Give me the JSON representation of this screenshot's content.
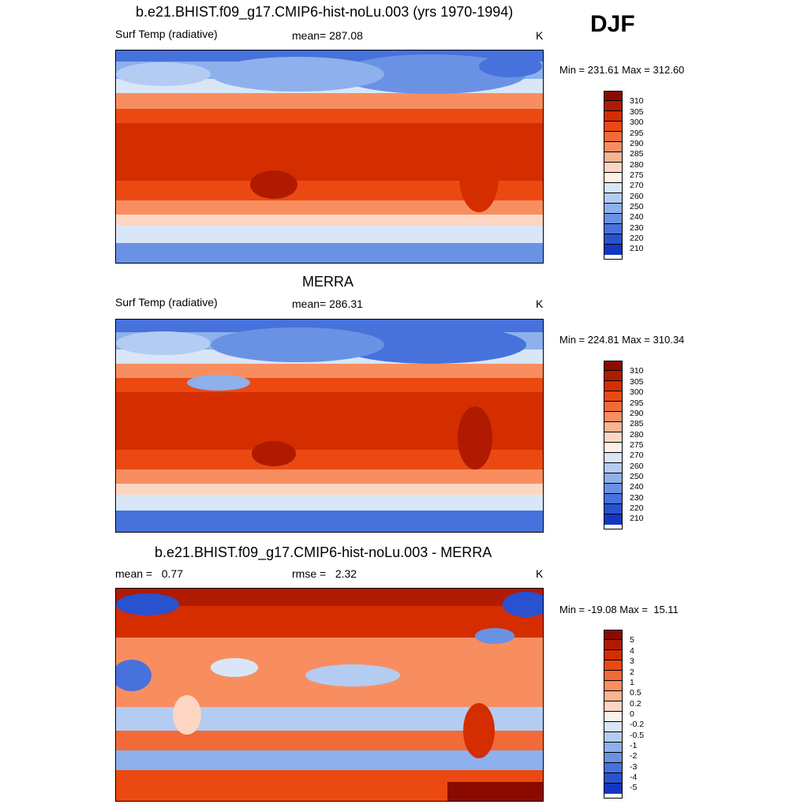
{
  "season": "DJF",
  "panels": [
    {
      "id": "model",
      "title": "b.e21.BHIST.f09_g17.CMIP6-hist-noLu.003 (yrs 1970-1994)",
      "left_label": "Surf Temp (radiative)",
      "center_label": "mean= 287.08",
      "right_label": "K",
      "minmax": "Min = 231.61 Max = 312.60",
      "colorbar": {
        "colors": [
          "#8b0a00",
          "#b01a00",
          "#d42d00",
          "#ea4a12",
          "#f26a38",
          "#f88e60",
          "#fbb392",
          "#fdd6c2",
          "#fdf0e8",
          "#d8e6f8",
          "#b4ccf2",
          "#8eb0ec",
          "#6a92e4",
          "#4772dc",
          "#2852d0",
          "#1337c2",
          "#0a1cae",
          "#050f90"
        ],
        "labels": [
          "310",
          "305",
          "300",
          "295",
          "290",
          "285",
          "280",
          "275",
          "270",
          "260",
          "250",
          "240",
          "230",
          "220",
          "210"
        ]
      }
    },
    {
      "id": "obs",
      "title": "MERRA",
      "left_label": "Surf Temp (radiative)",
      "center_label": "mean= 286.31",
      "right_label": "K",
      "minmax": "Min = 224.81 Max = 310.34",
      "colorbar": {
        "colors": [
          "#8b0a00",
          "#b01a00",
          "#d42d00",
          "#ea4a12",
          "#f26a38",
          "#f88e60",
          "#fbb392",
          "#fdd6c2",
          "#fdf0e8",
          "#d8e6f8",
          "#b4ccf2",
          "#8eb0ec",
          "#6a92e4",
          "#4772dc",
          "#2852d0",
          "#1337c2",
          "#0a1cae",
          "#050f90"
        ],
        "labels": [
          "310",
          "305",
          "300",
          "295",
          "290",
          "285",
          "280",
          "275",
          "270",
          "260",
          "250",
          "240",
          "230",
          "220",
          "210"
        ]
      }
    },
    {
      "id": "diff",
      "title": "b.e21.BHIST.f09_g17.CMIP6-hist-noLu.003 - MERRA",
      "left_label": "mean =   0.77",
      "center_label": "rmse =   2.32",
      "right_label": "K",
      "minmax": "Min = -19.08 Max =  15.11",
      "colorbar": {
        "colors": [
          "#8b0a00",
          "#b01a00",
          "#d42d00",
          "#ea4a12",
          "#f26a38",
          "#f88e60",
          "#fbb392",
          "#fdd6c2",
          "#fdf0e8",
          "#d8e6f8",
          "#b4ccf2",
          "#8eb0ec",
          "#6a92e4",
          "#4772dc",
          "#2852d0",
          "#1337c2",
          "#0a1cae",
          "#050f90"
        ],
        "labels": [
          "5",
          "4",
          "3",
          "2",
          "1",
          "0.5",
          "0.2",
          "0",
          "-0.2",
          "-0.5",
          "-1",
          "-2",
          "-3",
          "-4",
          "-5"
        ]
      }
    }
  ]
}
